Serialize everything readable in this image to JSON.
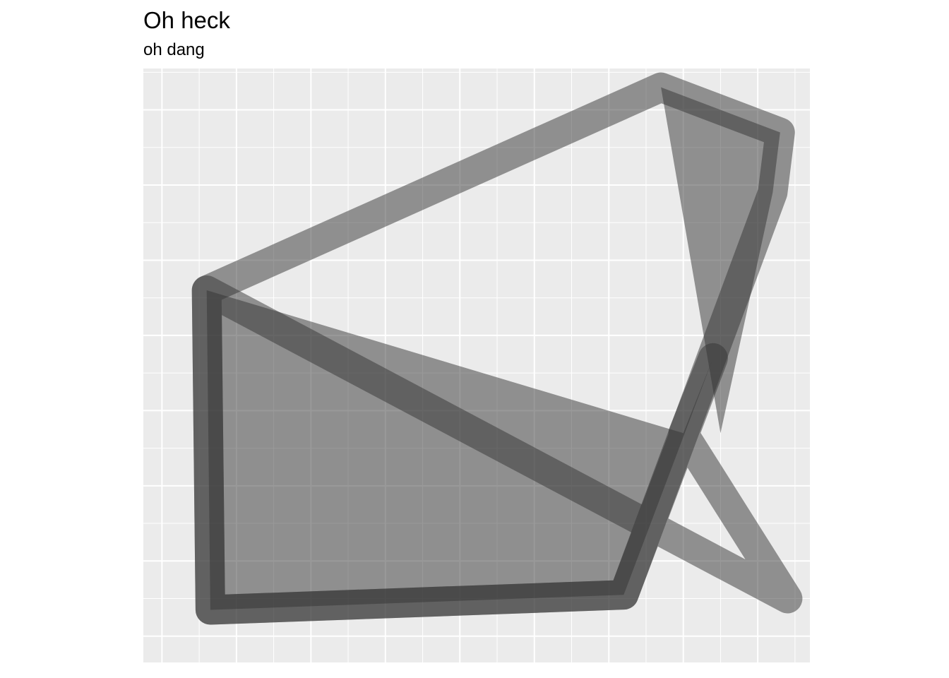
{
  "chart_data": {
    "type": "polygon",
    "title": "Oh heck",
    "subtitle": "oh dang",
    "xlabel": "",
    "ylabel": "",
    "axis_text": "none",
    "grid": true,
    "xlim": [
      -0.25,
      8.7
    ],
    "ylim": [
      -0.35,
      7.55
    ],
    "fill_color": "#333333",
    "outline_color": "#333333",
    "background_color": "#EBEBEB",
    "grid_color": "#FFFFFF",
    "series": [
      {
        "kind": "outline",
        "shapes": [
          {
            "points": [
              [
                0.6,
                4.6
              ],
              [
                0.65,
                0.35
              ],
              [
                6.2,
                0.55
              ],
              [
                8.2,
                5.9
              ],
              [
                8.3,
                6.7
              ],
              [
                6.7,
                7.3
              ]
            ]
          },
          {
            "points": [
              [
                8.4,
                0.5
              ],
              [
                0.6,
                4.6
              ],
              [
                0.65,
                0.35
              ],
              [
                6.2,
                0.55
              ],
              [
                7.4,
                3.7
              ],
              [
                7.0,
                2.7
              ]
            ]
          }
        ]
      },
      {
        "kind": "fill",
        "shapes": [
          {
            "points": [
              [
                0.6,
                4.6
              ],
              [
                0.65,
                0.35
              ],
              [
                6.2,
                0.55
              ],
              [
                7.4,
                3.7
              ],
              [
                7.0,
                2.7
              ]
            ]
          },
          {
            "points": [
              [
                6.7,
                7.3
              ],
              [
                7.5,
                2.7
              ],
              [
                8.2,
                5.9
              ],
              [
                8.3,
                6.7
              ]
            ]
          }
        ]
      }
    ]
  }
}
